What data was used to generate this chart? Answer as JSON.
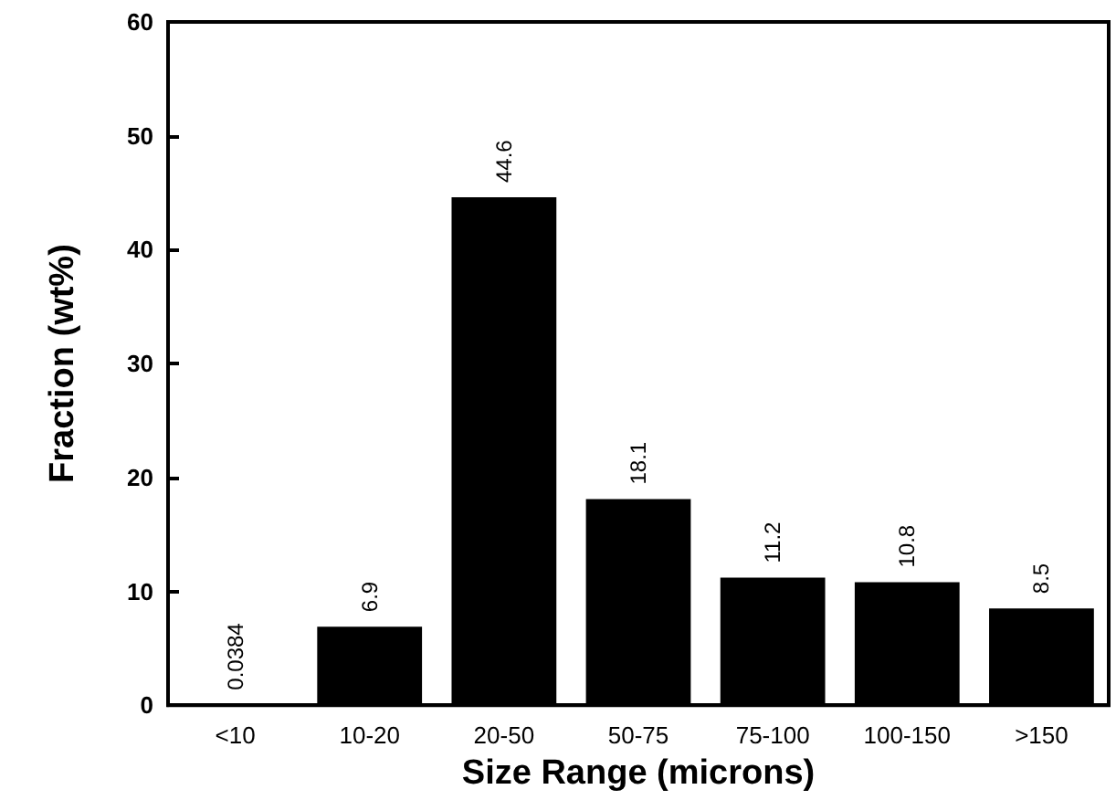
{
  "chart_data": {
    "type": "bar",
    "xlabel": "Size Range (microns)",
    "ylabel": "Fraction (wt%)",
    "categories": [
      "<10",
      "10-20",
      "20-50",
      "50-75",
      "75-100",
      "100-150",
      ">150"
    ],
    "values": [
      0.0384,
      6.9,
      44.6,
      18.1,
      11.2,
      10.8,
      8.5
    ],
    "color": "#000000",
    "ylim": [
      0,
      60
    ],
    "yticks": [
      0,
      10,
      20,
      30,
      40,
      50,
      60
    ],
    "grid": false,
    "data_labels": true
  }
}
